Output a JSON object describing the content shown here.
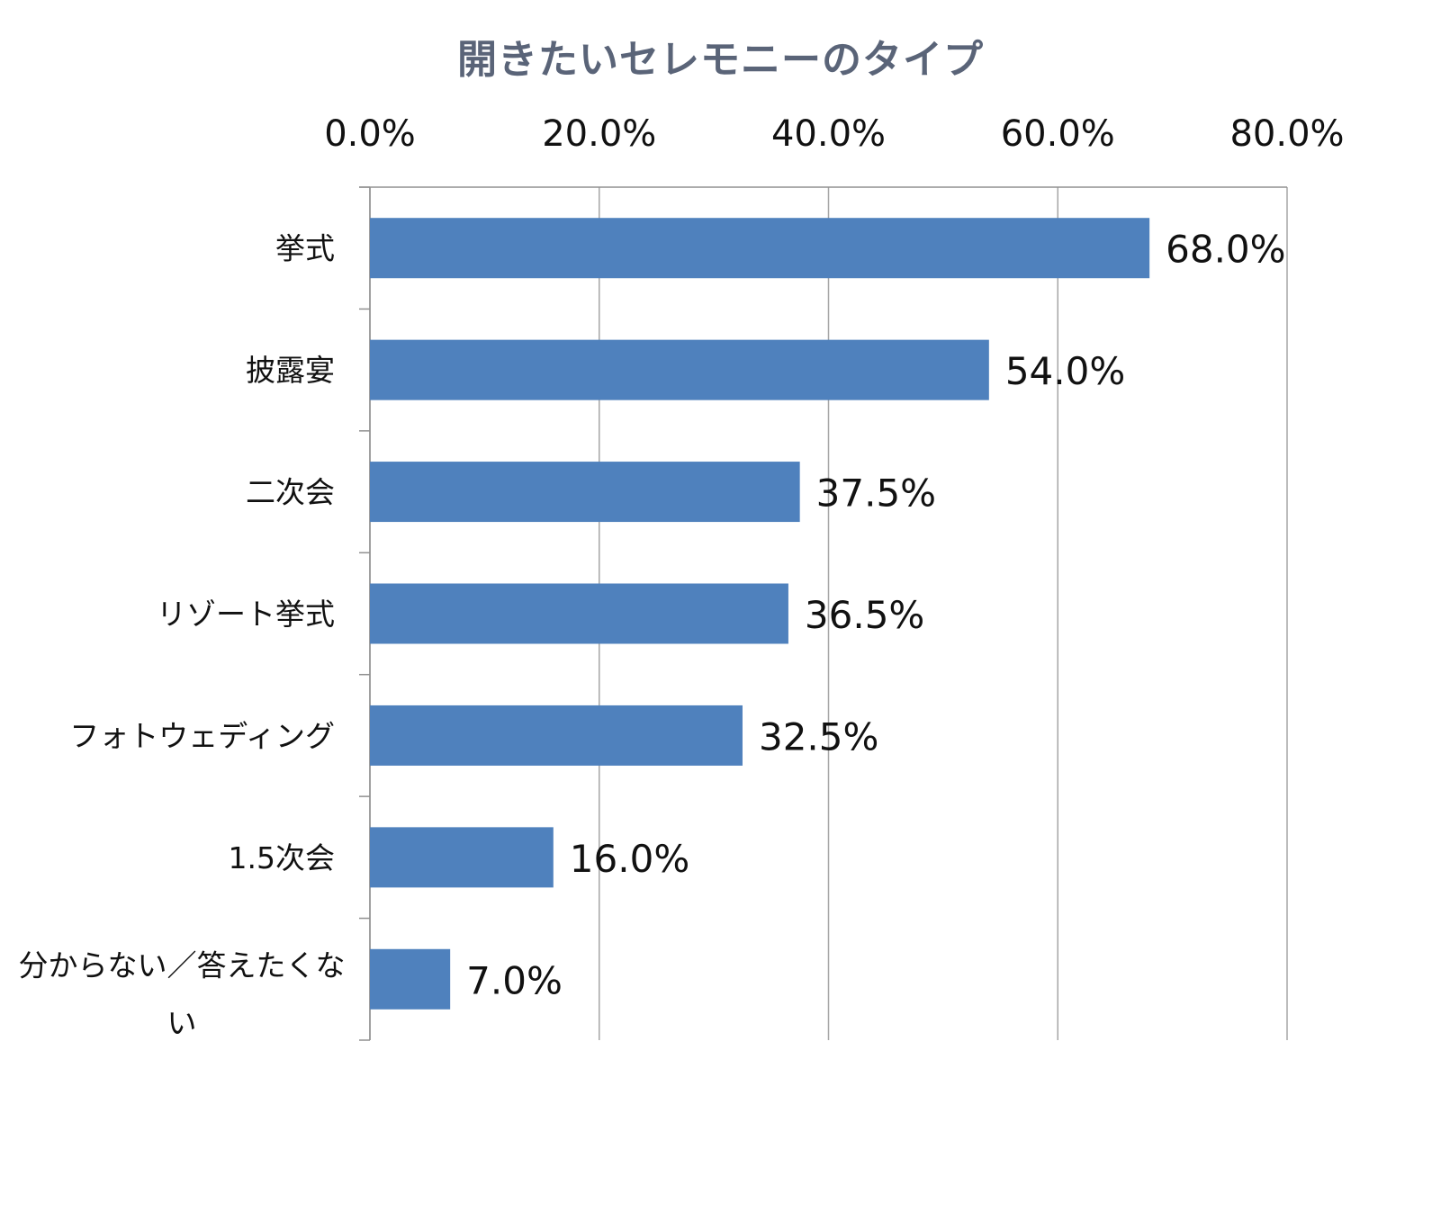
{
  "chart_data": {
    "type": "bar",
    "orientation": "horizontal",
    "title": "開きたいセレモニーのタイプ",
    "categories": [
      "挙式",
      "披露宴",
      "二次会",
      "リゾート挙式",
      "フォトウェディング",
      "1.5次会",
      "分からない／答えたくない"
    ],
    "values": [
      68.0,
      54.0,
      37.5,
      36.5,
      32.5,
      16.0,
      7.0
    ],
    "data_labels": [
      "68.0%",
      "54.0%",
      "37.5%",
      "36.5%",
      "32.5%",
      "16.0%",
      "7.0%"
    ],
    "x_ticks": [
      0,
      20,
      40,
      60,
      80
    ],
    "x_tick_labels": [
      "0.0%",
      "20.0%",
      "40.0%",
      "60.0%",
      "80.0%"
    ],
    "xlim": [
      0,
      80
    ],
    "x_axis_position": "top",
    "grid": true,
    "bar_color": "#4f81bd",
    "title_color": "#5a6478"
  }
}
